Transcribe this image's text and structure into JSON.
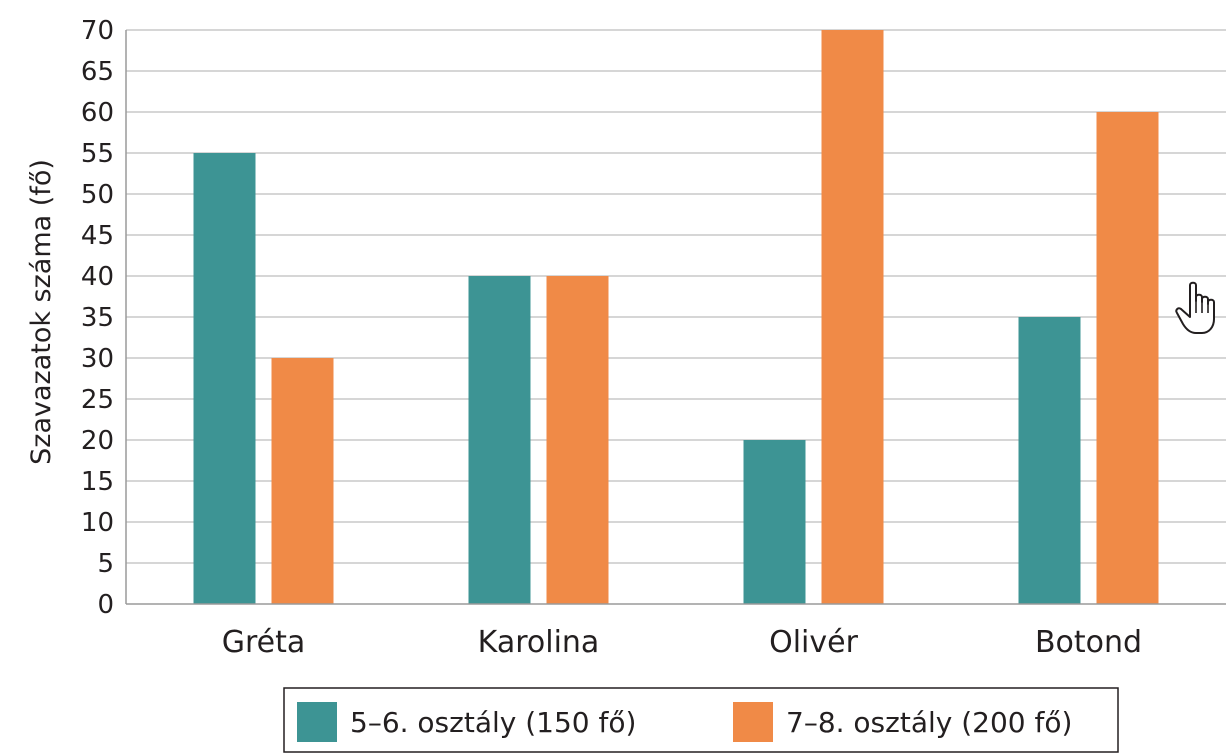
{
  "chart_data": {
    "type": "bar",
    "categories": [
      "Gréta",
      "Karolina",
      "Olivér",
      "Botond"
    ],
    "series": [
      {
        "name": "5–6. osztály (150 fő)",
        "color": "#3d9494",
        "values": [
          55,
          40,
          20,
          35
        ]
      },
      {
        "name": "7–8. osztály (200 fő)",
        "color": "#f08a47",
        "values": [
          30,
          40,
          70,
          60
        ]
      }
    ],
    "title": "",
    "xlabel": "",
    "ylabel": "Szavazatok száma (fő)",
    "ylim": [
      0,
      70
    ],
    "yticks": [
      "0",
      "5",
      "10",
      "15",
      "20",
      "25",
      "30",
      "35",
      "40",
      "45",
      "50",
      "55",
      "60",
      "65",
      "70"
    ],
    "grid": true,
    "legend_position": "bottom"
  },
  "cursor_icon": "hand-pointer-icon"
}
